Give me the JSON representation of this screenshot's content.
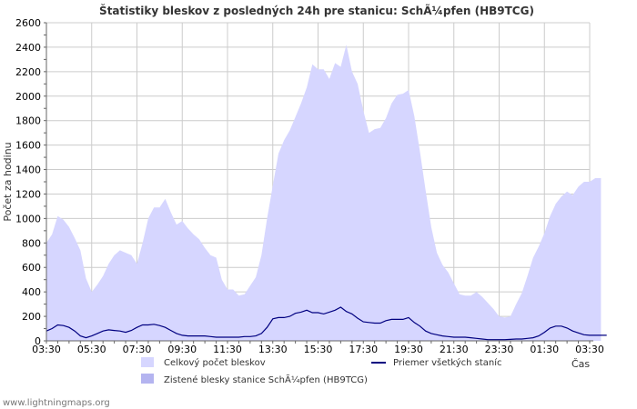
{
  "chart_data": {
    "type": "area",
    "title": "Štatistiky bleskov z posledných 24h pre stanicu: SchÃ¼pfen (HB9TCG)",
    "ylabel": "Počet za hodinu",
    "xlabel": "Čas",
    "ylim": [
      0,
      2600
    ],
    "yticks": [
      0,
      200,
      400,
      600,
      800,
      1000,
      1200,
      1400,
      1600,
      1800,
      2000,
      2200,
      2400,
      2600
    ],
    "grid": true,
    "legend_position": "bottom",
    "x_tick_labels": [
      "03:30",
      "05:30",
      "07:30",
      "09:30",
      "11:30",
      "13:30",
      "15:30",
      "17:30",
      "19:30",
      "21:30",
      "23:30",
      "01:30",
      "03:30"
    ],
    "x_step_hours": 0.25,
    "series": [
      {
        "name": "Celkový počet bleskov",
        "kind": "area",
        "color": "#d6d6ff",
        "values": [
          800,
          870,
          1020,
          990,
          930,
          840,
          740,
          510,
          400,
          460,
          530,
          630,
          700,
          740,
          720,
          700,
          630,
          800,
          1000,
          1090,
          1090,
          1160,
          1050,
          950,
          980,
          920,
          870,
          830,
          760,
          700,
          680,
          500,
          420,
          420,
          370,
          380,
          450,
          520,
          700,
          1000,
          1270,
          1530,
          1640,
          1720,
          1830,
          1940,
          2070,
          2260,
          2220,
          2220,
          2140,
          2270,
          2240,
          2420,
          2200,
          2100,
          1880,
          1700,
          1730,
          1740,
          1820,
          1940,
          2010,
          2020,
          2050,
          1840,
          1550,
          1230,
          930,
          720,
          620,
          560,
          470,
          380,
          370,
          370,
          400,
          360,
          310,
          260,
          200,
          190,
          200,
          300,
          390,
          530,
          680,
          770,
          880,
          1020,
          1120,
          1180,
          1220,
          1190,
          1260,
          1300,
          1300,
          1330,
          1330
        ]
      },
      {
        "name": "Zistené blesky stanice SchÃ¼pfen (HB9TCG)",
        "kind": "area",
        "color": "#b4b4f0",
        "values": [
          0
        ]
      },
      {
        "name": "Priemer všetkých staníc",
        "kind": "line",
        "color": "#000080",
        "values": [
          80,
          100,
          130,
          125,
          110,
          80,
          40,
          25,
          40,
          60,
          80,
          90,
          85,
          80,
          70,
          85,
          110,
          130,
          130,
          135,
          125,
          110,
          85,
          60,
          45,
          40,
          40,
          40,
          40,
          35,
          30,
          30,
          30,
          30,
          30,
          35,
          35,
          40,
          60,
          110,
          180,
          190,
          190,
          200,
          225,
          235,
          250,
          230,
          230,
          220,
          235,
          250,
          275,
          240,
          220,
          185,
          155,
          150,
          145,
          145,
          165,
          175,
          175,
          175,
          190,
          150,
          120,
          80,
          60,
          50,
          40,
          35,
          30,
          30,
          30,
          25,
          20,
          15,
          10,
          10,
          10,
          10,
          12,
          15,
          15,
          20,
          25,
          40,
          70,
          105,
          120,
          120,
          105,
          80,
          65,
          50,
          45,
          45,
          45,
          45
        ]
      }
    ]
  },
  "footer": {
    "source": "www.lightningmaps.org"
  }
}
